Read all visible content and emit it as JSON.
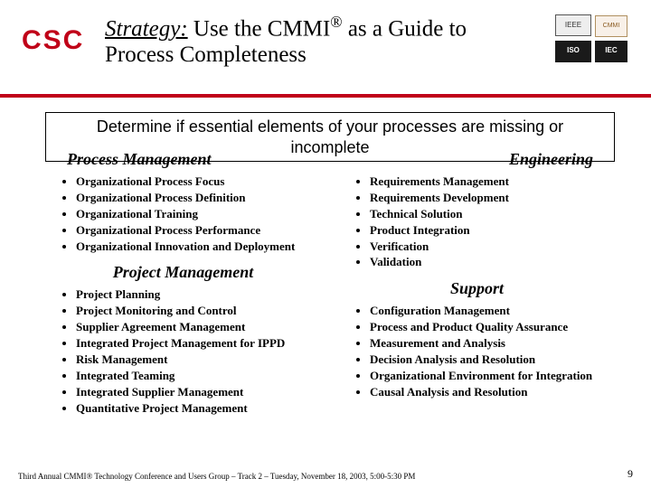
{
  "logo_text": "CSC",
  "title": {
    "lead": "Strategy:",
    "rest1": " Use the CMMI",
    "sup": "®",
    "rest2": " as a Guide to",
    "line2": "Process Completeness"
  },
  "top_logos": {
    "ieee": "IEEE",
    "cmmi": "CMMI",
    "iso": "ISO",
    "iec": "IEC"
  },
  "callout": {
    "line1": "Determine if essential elements of your processes are missing or",
    "line2": "incomplete"
  },
  "sections": {
    "process_mgmt": {
      "heading": "Process Management",
      "items": [
        "Organizational Process Focus",
        "Organizational Process Definition",
        "Organizational Training",
        "Organizational Process Performance",
        "Organizational Innovation and Deployment"
      ]
    },
    "engineering": {
      "heading": "Engineering",
      "items": [
        "Requirements Management",
        "Requirements Development",
        "Technical Solution",
        "Product Integration",
        "Verification",
        "Validation"
      ]
    },
    "project_mgmt": {
      "heading": "Project Management",
      "items": [
        "Project Planning",
        "Project Monitoring and Control",
        "Supplier Agreement Management",
        "Integrated Project Management for IPPD",
        "Risk Management",
        "Integrated Teaming",
        "Integrated Supplier Management",
        "Quantitative Project Management"
      ]
    },
    "support": {
      "heading": "Support",
      "items": [
        "Configuration Management",
        "Process and Product Quality Assurance",
        "Measurement and Analysis",
        "Decision Analysis and Resolution",
        "Organizational Environment for Integration",
        "Causal Analysis and Resolution"
      ]
    }
  },
  "footer_text": "Third Annual CMMI® Technology Conference and Users Group – Track 2 – Tuesday, November 18, 2003, 5:00-5:30 PM",
  "page_number": "9",
  "colors": {
    "accent_red": "#c00018",
    "text": "#000000",
    "background": "#ffffff"
  }
}
